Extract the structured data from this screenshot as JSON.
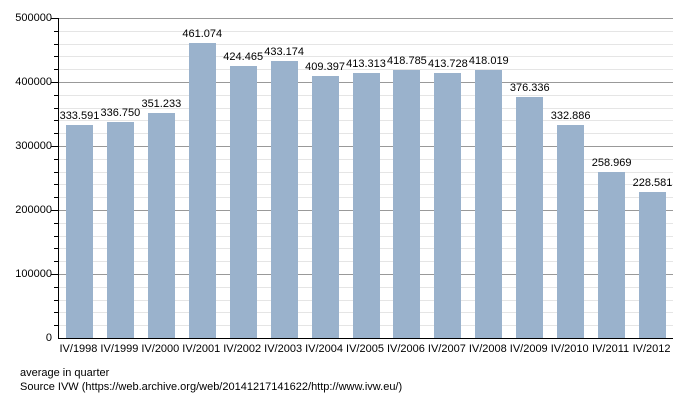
{
  "chart_data": {
    "type": "bar",
    "title": "",
    "xlabel": "",
    "ylabel": "",
    "categories": [
      "IV/1998",
      "IV/1999",
      "IV/2000",
      "IV/2001",
      "IV/2002",
      "IV/2003",
      "IV/2004",
      "IV/2005",
      "IV/2006",
      "IV/2007",
      "IV/2008",
      "IV/2009",
      "IV/2010",
      "IV/2011",
      "IV/2012"
    ],
    "values": [
      333591,
      336750,
      351233,
      461074,
      424465,
      433174,
      409397,
      413313,
      418785,
      413728,
      418019,
      376336,
      332886,
      258969,
      228581
    ],
    "value_labels": [
      "333.591",
      "336.750",
      "351.233",
      "461.074",
      "424.465",
      "433.174",
      "409.397",
      "413.313",
      "418.785",
      "413.728",
      "418.019",
      "376.336",
      "332.886",
      "258.969",
      "228.581"
    ],
    "ylim": [
      0,
      500000
    ],
    "y_major_step": 100000,
    "y_minor_step": 20000,
    "y_tick_labels": [
      "0",
      "100000",
      "200000",
      "300000",
      "400000",
      "500000"
    ],
    "grid": "horizontal major and minor gridlines, no vertical",
    "legend": "none",
    "bar_color": "#9AB2CC",
    "major_grid_color": "#999999",
    "minor_grid_color": "#e5e5e5",
    "axis_color": "#000000"
  },
  "footer": {
    "line1": "average in quarter",
    "line2": "Source IVW (https://web.archive.org/web/20141217141622/http://www.ivw.eu/)"
  }
}
